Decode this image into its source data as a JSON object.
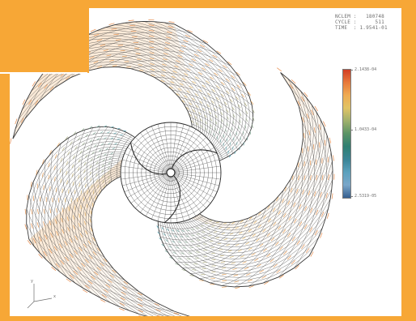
{
  "header": {
    "line1": "NCLEM :   180748",
    "line2": "CYCLE :      511",
    "line3": "TIME  : 1.9541-01"
  },
  "legend": {
    "top_label": "2.1438-04",
    "mid_label": "1.0433-04",
    "bottom_label": "2.5319-05",
    "colors": [
      "#d23c23",
      "#e8793a",
      "#efab52",
      "#e0c465",
      "#9fb06c",
      "#5a9366",
      "#2f7f72",
      "#3a8496",
      "#5ca1bd",
      "#7aa7c9",
      "#365f8f"
    ]
  },
  "plot": {
    "mesh_color": "#3a3a3a",
    "hub_color": "#2a2a2a",
    "arrow_hot": "#e48a4a",
    "arrow_cool": "#4aa0b8"
  },
  "triad": {
    "x_label": "x",
    "y_label": "y"
  }
}
